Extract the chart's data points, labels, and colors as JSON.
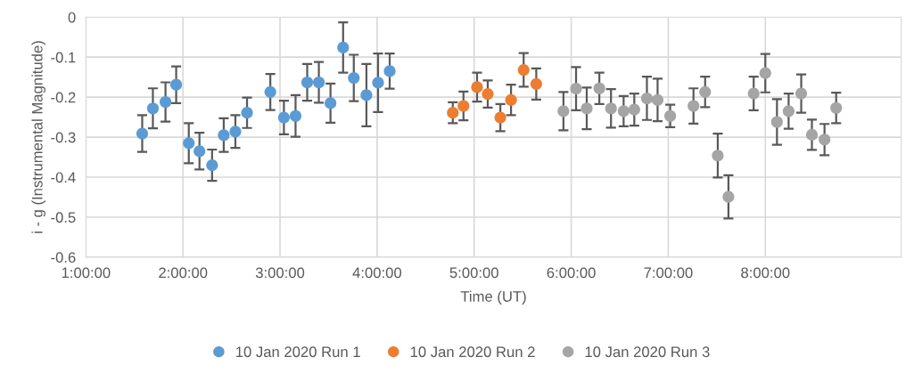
{
  "chart_data": {
    "type": "scatter",
    "xlabel": "Time (UT)",
    "ylabel": "i - g (Instrumental Magnitude)",
    "xlim": [
      1,
      9.4
    ],
    "ylim": [
      -0.6,
      0
    ],
    "xticks": [
      {
        "value": 1,
        "label": "1:00:00"
      },
      {
        "value": 2,
        "label": "2:00:00"
      },
      {
        "value": 3,
        "label": "3:00:00"
      },
      {
        "value": 4,
        "label": "4:00:00"
      },
      {
        "value": 5,
        "label": "5:00:00"
      },
      {
        "value": 6,
        "label": "6:00:00"
      },
      {
        "value": 7,
        "label": "7:00:00"
      },
      {
        "value": 8,
        "label": "8:00:00"
      }
    ],
    "yticks": [
      {
        "value": -0.6,
        "label": "-0.6"
      },
      {
        "value": -0.5,
        "label": "-0.5"
      },
      {
        "value": -0.4,
        "label": "-0.4"
      },
      {
        "value": -0.3,
        "label": "-0.3"
      },
      {
        "value": -0.2,
        "label": "-0.2"
      },
      {
        "value": -0.1,
        "label": "-0.1"
      },
      0
    ],
    "grid": true,
    "legend": "bottom",
    "marker": "circle",
    "series": [
      {
        "name": "10 Jan 2020 Run 1",
        "color": "#5b9bd5",
        "x": [
          1.58,
          1.69,
          1.82,
          1.93,
          2.06,
          2.17,
          2.3,
          2.42,
          2.54,
          2.66,
          2.9,
          3.04,
          3.16,
          3.28,
          3.4,
          3.52,
          3.65,
          3.76,
          3.89,
          4.01,
          4.13
        ],
        "values": [
          -0.291,
          -0.228,
          -0.212,
          -0.169,
          -0.315,
          -0.335,
          -0.37,
          -0.295,
          -0.286,
          -0.239,
          -0.187,
          -0.251,
          -0.247,
          -0.163,
          -0.163,
          -0.215,
          -0.076,
          -0.152,
          -0.195,
          -0.164,
          -0.135
        ],
        "errors": [
          0.046,
          0.05,
          0.049,
          0.046,
          0.05,
          0.046,
          0.039,
          0.042,
          0.041,
          0.038,
          0.045,
          0.042,
          0.052,
          0.046,
          0.051,
          0.049,
          0.063,
          0.058,
          0.078,
          0.073,
          0.044
        ]
      },
      {
        "name": "10 Jan 2020 Run 2",
        "color": "#ed7d31",
        "x": [
          4.78,
          4.89,
          5.03,
          5.14,
          5.27,
          5.38,
          5.51,
          5.64
        ],
        "values": [
          -0.239,
          -0.222,
          -0.175,
          -0.192,
          -0.251,
          -0.207,
          -0.132,
          -0.167
        ],
        "errors": [
          0.026,
          0.036,
          0.036,
          0.034,
          0.034,
          0.038,
          0.042,
          0.039
        ]
      },
      {
        "name": "10 Jan 2020 Run 3",
        "color": "#a5a5a5",
        "x": [
          5.92,
          6.05,
          6.16,
          6.29,
          6.41,
          6.54,
          6.65,
          6.78,
          6.89,
          7.02,
          7.26,
          7.38,
          7.51,
          7.62,
          7.88,
          8.0,
          8.12,
          8.24,
          8.37,
          8.48,
          8.61,
          8.73
        ],
        "values": [
          -0.235,
          -0.179,
          -0.228,
          -0.178,
          -0.228,
          -0.235,
          -0.231,
          -0.203,
          -0.207,
          -0.247,
          -0.222,
          -0.187,
          -0.346,
          -0.449,
          -0.191,
          -0.14,
          -0.262,
          -0.235,
          -0.191,
          -0.294,
          -0.306,
          -0.227
        ],
        "errors": [
          0.048,
          0.054,
          0.052,
          0.039,
          0.048,
          0.038,
          0.04,
          0.054,
          0.053,
          0.028,
          0.044,
          0.038,
          0.055,
          0.054,
          0.042,
          0.048,
          0.057,
          0.044,
          0.048,
          0.038,
          0.039,
          0.038
        ]
      }
    ]
  }
}
